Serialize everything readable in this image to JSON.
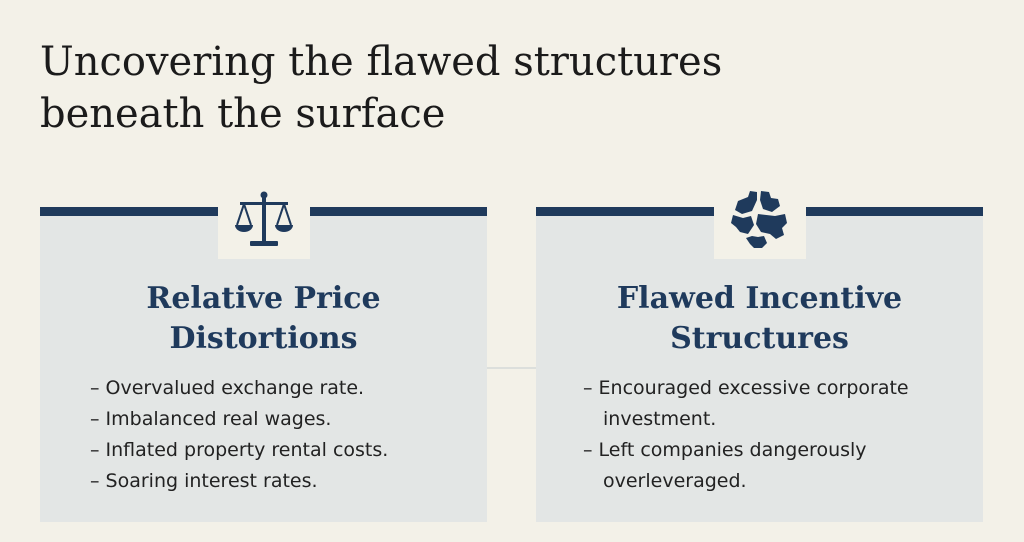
{
  "title": "Uncovering the flawed structures beneath the surface",
  "cards": [
    {
      "heading": "Relative Price Distortions",
      "items": [
        "– Overvalued exchange rate.",
        "– Imbalanced real wages.",
        "– Inflated property rental costs.",
        "– Soaring interest rates."
      ]
    },
    {
      "heading": "Flawed Incentive Structures",
      "items": [
        "– Encouraged excessive corporate investment.",
        "– Left companies dangerously overleveraged."
      ]
    }
  ]
}
